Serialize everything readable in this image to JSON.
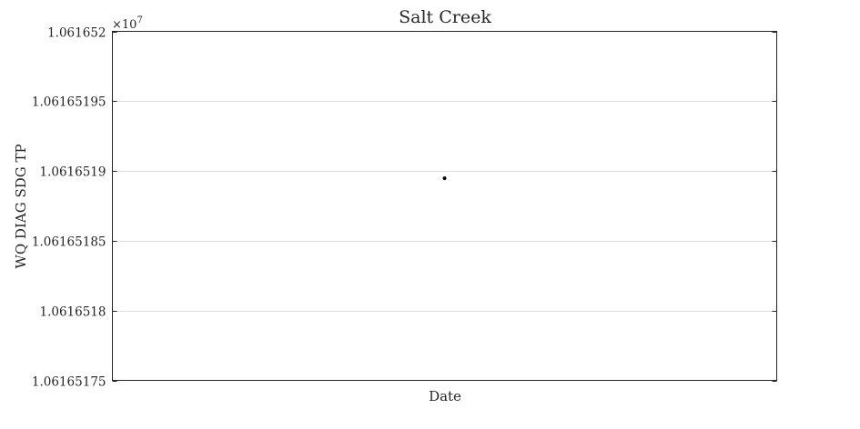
{
  "chart_data": {
    "type": "scatter",
    "title": "Salt Creek",
    "xlabel": "Date",
    "ylabel": "WQ DIAG SDG TP",
    "y_multiplier_label": "×10",
    "y_multiplier_exponent": "7",
    "ylim": [
      1.06165175,
      1.061652
    ],
    "yticks": [
      1.06165175,
      1.0616518,
      1.06165185,
      1.0616519,
      1.06165195,
      1.061652
    ],
    "ytick_labels": [
      "1.06165175",
      "1.0616518",
      "1.06165185",
      "1.0616519",
      "1.06165195",
      "1.061652"
    ],
    "xlim": [
      0,
      1
    ],
    "points": [
      {
        "x": 0.5,
        "y": 1.0616518948
      }
    ],
    "grid": true,
    "legend": false,
    "colors": {
      "axis": "#262626",
      "grid": "#dcdcdc",
      "marker": "#000000"
    }
  }
}
